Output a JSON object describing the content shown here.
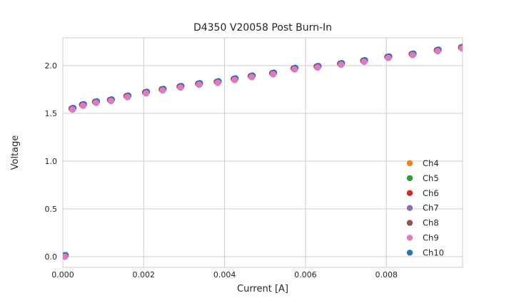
{
  "figure": {
    "background": "#ffffff",
    "text_color": "#262626",
    "grid_color": "#cccccc"
  },
  "chart_data": {
    "type": "scatter",
    "title": "D4350 V20058 Post Burn-In",
    "xlabel": "Current [A]",
    "ylabel": "Voltage",
    "xlim": [
      0,
      0.009885
    ],
    "ylim": [
      -0.112,
      2.291
    ],
    "grid": true,
    "legend_position": "lower right inside axes",
    "xticks": [
      0.0,
      0.002,
      0.004,
      0.006,
      0.008
    ],
    "xtick_labels": [
      "0.000",
      "0.002",
      "0.004",
      "0.006",
      "0.008"
    ],
    "yticks": [
      0.0,
      0.5,
      1.0,
      1.5,
      2.0
    ],
    "ytick_labels": [
      "0.0",
      "0.5",
      "1.0",
      "1.5",
      "2.0"
    ],
    "x": [
      5e-05,
      0.00024,
      0.0005,
      0.00082,
      0.00119,
      0.0016,
      0.00206,
      0.00247,
      0.00291,
      0.00337,
      0.00383,
      0.00425,
      0.00467,
      0.0052,
      0.00573,
      0.0063,
      0.00688,
      0.00745,
      0.00805,
      0.00865,
      0.00927,
      0.00987
    ],
    "voltage": [
      0.0,
      1.54,
      1.58,
      1.61,
      1.63,
      1.67,
      1.71,
      1.74,
      1.77,
      1.8,
      1.82,
      1.85,
      1.88,
      1.91,
      1.96,
      1.98,
      2.01,
      2.04,
      2.08,
      2.11,
      2.15,
      2.18
    ],
    "series": [
      {
        "name": "Ch4",
        "color": "#ff7f0e",
        "dx": 0,
        "dy": -0.8,
        "z": 1
      },
      {
        "name": "Ch5",
        "color": "#2ca02c",
        "dx": 0.4,
        "dy": -0.8,
        "z": 2
      },
      {
        "name": "Ch6",
        "color": "#d62728",
        "dx": -0.4,
        "dy": -1.0,
        "z": 3
      },
      {
        "name": "Ch7",
        "color": "#9467bd",
        "dx": 0.8,
        "dy": -1.8,
        "z": 4
      },
      {
        "name": "Ch8",
        "color": "#8c564b",
        "dx": -1.2,
        "dy": -1.4,
        "z": 5
      },
      {
        "name": "Ch9",
        "color": "#e377c2",
        "dx": 0,
        "dy": 0,
        "z": 7
      },
      {
        "name": "Ch10",
        "color": "#1f77b4",
        "dx": 1.0,
        "dy": -2.0,
        "z": 6
      }
    ]
  }
}
